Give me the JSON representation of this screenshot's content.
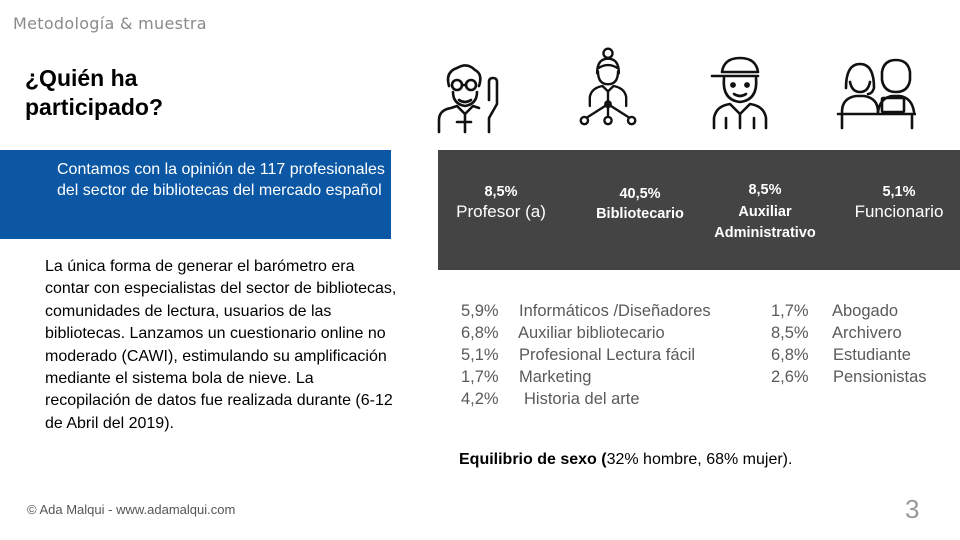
{
  "header": {
    "section": "Metodología & muestra"
  },
  "title": {
    "line1": "¿Quién ha",
    "line2": "participado?"
  },
  "highlight": {
    "text": "Contamos con la opinión de 117 profesionales del sector de bibliotecas del mercado español"
  },
  "body": {
    "text": "La única forma de generar el barómetro era contar con especialistas del sector de bibliotecas, comunidades de lectura, usuarios de las bibliotecas. Lanzamos un cuestionario online no moderado (CAWI), estimulando su amplificación mediante el sistema bola de nieve. La recopilación de datos fue realizada durante (6-12 de Abril del 2019)."
  },
  "profiles": [
    {
      "pct": "8,5%",
      "label": "Profesor (a)",
      "icon": "teacher-icon"
    },
    {
      "pct": "40,5%",
      "label": "Bibliotecario",
      "icon": "librarian-network-icon"
    },
    {
      "pct": "8,5%",
      "label_line1": "Auxiliar",
      "label_line2": "Administrativo",
      "icon": "worker-cap-icon"
    },
    {
      "pct": "5,1%",
      "label": "Funcionario",
      "icon": "office-desk-icon"
    }
  ],
  "others_left": [
    {
      "pct": "5,9%",
      "label": "Informáticos  /Diseñadores"
    },
    {
      "pct": "6,8%",
      "label": "Auxiliar bibliotecario"
    },
    {
      "pct": "5,1%",
      "label": "Profesional Lectura fácil"
    },
    {
      "pct": "1,7%",
      "label": "Marketing"
    },
    {
      "pct": "4,2%",
      "label": "Historia del arte"
    }
  ],
  "others_right": [
    {
      "pct": "1,7%",
      "label": "Abogado"
    },
    {
      "pct": "8,5%",
      "label": "Archivero"
    },
    {
      "pct": "6,8%",
      "label": "Estudiante"
    },
    {
      "pct": "2,6%",
      "label": "Pensionistas"
    }
  ],
  "gender": {
    "bold": "Equilibrio de sexo  (",
    "rest": "32% hombre, 68% mujer)."
  },
  "footer": {
    "text": "© Ada Malqui - www.adamalqui.com",
    "page": "3"
  },
  "colors": {
    "accent_blue": "#0b57a4",
    "dark_bar": "#444444"
  }
}
